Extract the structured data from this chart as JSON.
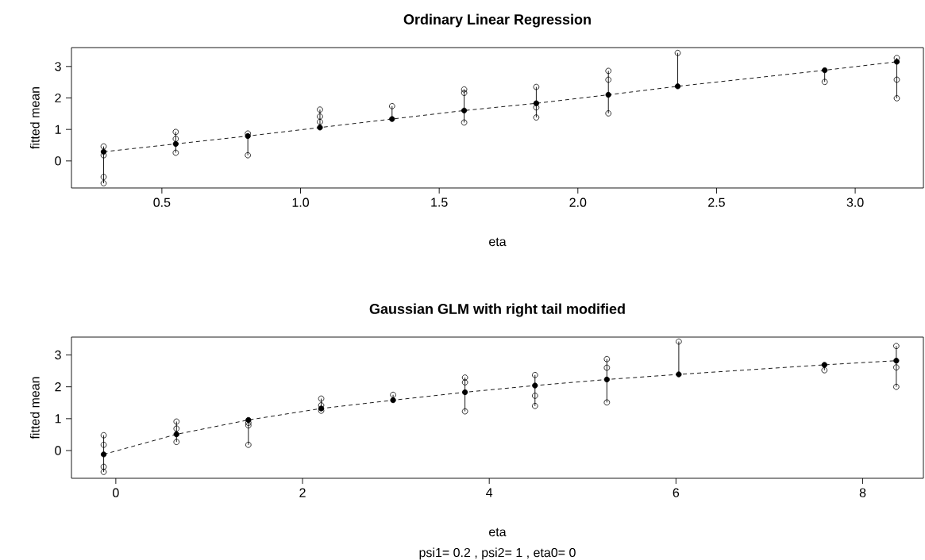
{
  "chart_data": [
    {
      "type": "line",
      "title": "Ordinary Linear Regression",
      "xlabel": "eta",
      "ylabel": "fitted mean",
      "xlim": [
        0.174,
        3.246
      ],
      "ylim": [
        -0.86,
        3.6
      ],
      "xticks": [
        0.5,
        {
          "value": 1,
          "label": "1.0"
        },
        1.5,
        {
          "value": 2,
          "label": "2.0"
        },
        2.5,
        {
          "value": 3,
          "label": "3.0"
        }
      ],
      "yticks": [
        0,
        1,
        2,
        3
      ],
      "series": [
        {
          "type": "line",
          "color": "#000000",
          "line_style": "dashed",
          "marker": "circle",
          "x": [
            0.29,
            0.55,
            0.81,
            1.07,
            1.33,
            1.59,
            1.85,
            2.11,
            2.36,
            2.89,
            3.15
          ],
          "values": [
            0.29,
            0.54,
            0.79,
            1.06,
            1.33,
            1.6,
            1.83,
            2.1,
            2.37,
            2.88,
            3.15
          ],
          "errors": [
            [
              -0.71,
              0.46
            ],
            [
              0.26,
              0.92
            ],
            [
              0.18,
              0.87
            ],
            [
              1.06,
              1.63
            ],
            [
              1.33,
              1.74
            ],
            [
              1.22,
              2.27
            ],
            [
              1.38,
              2.35
            ],
            [
              1.51,
              2.86
            ],
            [
              2.37,
              3.43
            ],
            [
              2.51,
              2.88
            ],
            [
              1.99,
              3.27
            ]
          ]
        },
        {
          "type": "scatter",
          "color": "#000000",
          "marker": "circle",
          "x": [
            0.29,
            0.29,
            0.29,
            0.29,
            0.55,
            0.55,
            0.55,
            0.81,
            0.81,
            1.07,
            1.07,
            1.07,
            1.33,
            1.59,
            1.59,
            1.59,
            1.85,
            1.85,
            1.85,
            2.11,
            2.11,
            2.11,
            2.36,
            2.89,
            3.15,
            3.15,
            3.15
          ],
          "values": [
            0.46,
            0.18,
            -0.51,
            -0.71,
            0.92,
            0.7,
            0.26,
            0.87,
            0.18,
            1.63,
            1.41,
            1.24,
            1.74,
            2.27,
            2.16,
            1.22,
            2.35,
            1.7,
            1.38,
            2.86,
            2.58,
            1.51,
            3.43,
            2.51,
            3.27,
            2.58,
            1.99
          ]
        }
      ]
    },
    {
      "type": "line",
      "title": "Gaussian GLM with  right  tail modified",
      "xlabel": "eta",
      "ylabel": "fitted mean",
      "annotations": [
        "psi1= 0.2 , psi2= 1 , eta0= 0"
      ],
      "xlim": [
        -0.475,
        8.65
      ],
      "ylim": [
        -0.87,
        3.56
      ],
      "xticks": [
        0,
        2,
        4,
        6,
        8
      ],
      "yticks": [
        0,
        1,
        2,
        3
      ],
      "series": [
        {
          "type": "line",
          "color": "#000000",
          "line_style": "dashed",
          "marker": "circle",
          "x": [
            -0.13,
            0.65,
            1.42,
            2.2,
            2.97,
            3.74,
            4.49,
            5.26,
            6.03,
            7.59,
            8.36
          ],
          "values": [
            -0.12,
            0.51,
            0.96,
            1.32,
            1.58,
            1.83,
            2.04,
            2.23,
            2.39,
            2.69,
            2.82
          ],
          "errors": [
            [
              -0.67,
              0.48
            ],
            [
              0.27,
              0.91
            ],
            [
              0.18,
              0.96
            ],
            [
              1.25,
              1.63
            ],
            [
              1.58,
              1.75
            ],
            [
              1.23,
              2.29
            ],
            [
              1.4,
              2.37
            ],
            [
              1.51,
              2.87
            ],
            [
              2.39,
              3.42
            ],
            [
              2.52,
              2.69
            ],
            [
              2.0,
              3.28
            ]
          ]
        },
        {
          "type": "scatter",
          "color": "#000000",
          "marker": "circle",
          "x": [
            -0.13,
            -0.13,
            -0.13,
            -0.13,
            0.65,
            0.65,
            0.65,
            1.42,
            1.42,
            1.42,
            2.2,
            2.2,
            2.2,
            2.97,
            3.74,
            3.74,
            3.74,
            4.49,
            4.49,
            4.49,
            5.26,
            5.26,
            5.26,
            6.03,
            7.59,
            8.36,
            8.36,
            8.36
          ],
          "values": [
            0.48,
            0.18,
            -0.51,
            -0.67,
            0.91,
            0.69,
            0.27,
            0.87,
            0.79,
            0.18,
            1.63,
            1.42,
            1.25,
            1.75,
            2.29,
            2.14,
            1.23,
            2.37,
            1.72,
            1.4,
            2.87,
            2.6,
            1.51,
            3.42,
            2.52,
            3.28,
            2.61,
            2.0
          ]
        }
      ]
    }
  ]
}
